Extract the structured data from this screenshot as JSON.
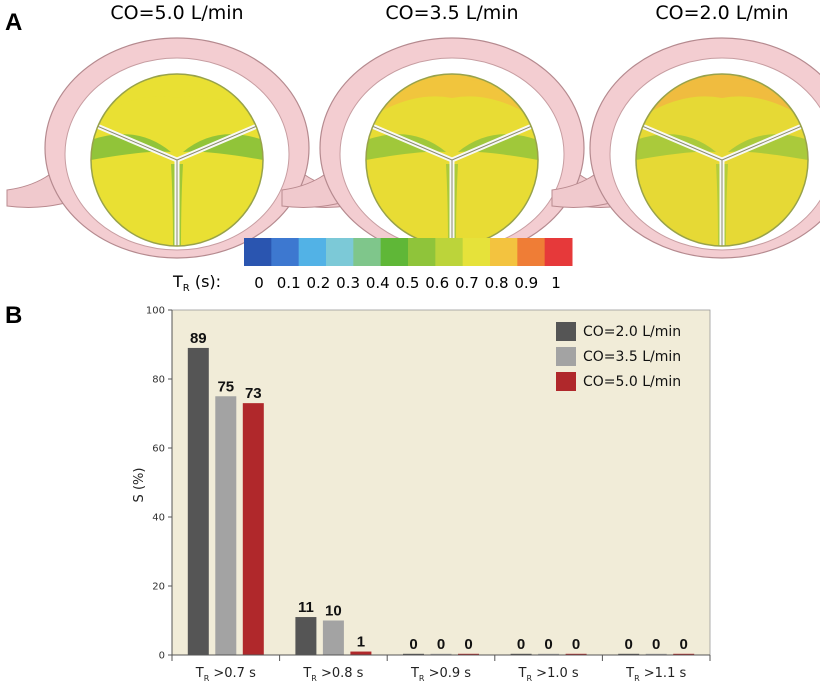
{
  "panel_a": {
    "label": "A",
    "valves": [
      {
        "title": "CO=5.0 L/min",
        "cap": "#e9e033",
        "edge": "#8cc23a",
        "blush": "#e9e033"
      },
      {
        "title": "CO=3.5 L/min",
        "cap": "#e8dc34",
        "edge": "#9cc63b",
        "blush": "#f2c23e"
      },
      {
        "title": "CO=2.0 L/min",
        "cap": "#e6d935",
        "edge": "#a7c93c",
        "blush": "#f1b840"
      }
    ],
    "colorbar": {
      "label_main": "T",
      "label_sub": "R",
      "label_rest": " (s):",
      "ticks": [
        "0",
        "0.1",
        "0.2",
        "0.3",
        "0.4",
        "0.5",
        "0.6",
        "0.7",
        "0.8",
        "0.9",
        "1"
      ],
      "colors": [
        "#2a55b0",
        "#3d78d0",
        "#52b2e6",
        "#7cc9d7",
        "#7fc68b",
        "#5fb737",
        "#8fc43a",
        "#bcd43a",
        "#e6e23a",
        "#f3c33f",
        "#ef7d36",
        "#e6393a"
      ]
    }
  },
  "panel_b": {
    "label": "B"
  },
  "chart_data": {
    "type": "bar",
    "title": "",
    "xlabel": "",
    "ylabel": "S (%)",
    "ylim": [
      0,
      100
    ],
    "yticks": [
      0,
      20,
      40,
      60,
      80,
      100
    ],
    "categories": [
      {
        "main": "T",
        "sub": "R",
        "rest": " >0.7 s"
      },
      {
        "main": "T",
        "sub": "R",
        "rest": " >0.8 s"
      },
      {
        "main": "T",
        "sub": "R",
        "rest": " >0.9 s"
      },
      {
        "main": "T",
        "sub": "R",
        "rest": " >1.0 s"
      },
      {
        "main": "T",
        "sub": "R",
        "rest": " >1.1 s"
      }
    ],
    "series": [
      {
        "name": "CO=2.0 L/min",
        "color": "#555555",
        "values": [
          89,
          11,
          0,
          0,
          0
        ]
      },
      {
        "name": "CO=3.5 L/min",
        "color": "#a3a3a3",
        "values": [
          75,
          10,
          0,
          0,
          0
        ]
      },
      {
        "name": "CO=5.0 L/min",
        "color": "#b0282b",
        "values": [
          73,
          1,
          0,
          0,
          0
        ]
      }
    ],
    "legend_position": "top-right",
    "background": "#f1ecd8"
  }
}
